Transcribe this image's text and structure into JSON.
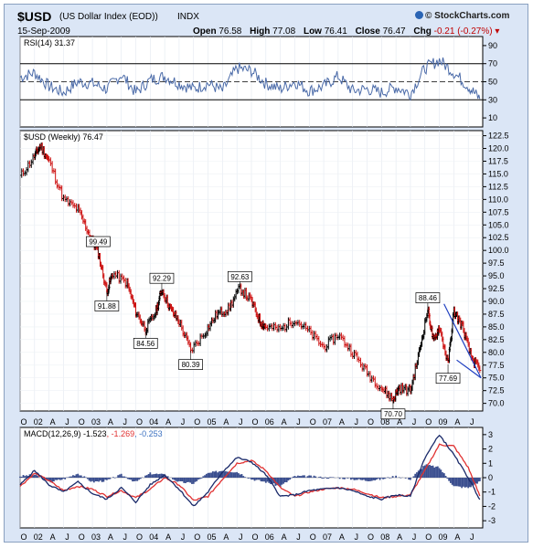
{
  "header": {
    "symbol": "$USD",
    "description": "(US Dollar Index (EOD))",
    "exchange": "INDX",
    "date": "15-Sep-2009",
    "brand": "© StockCharts.com",
    "quote": {
      "open_label": "Open",
      "open": "76.58",
      "high_label": "High",
      "high": "77.08",
      "low_label": "Low",
      "low": "76.41",
      "close_label": "Close",
      "close": "76.47",
      "chg_label": "Chg",
      "chg": "-0.21 (-0.27%)"
    }
  },
  "rsi_panel": {
    "label": "RSI(14) 31.37",
    "ticks": [
      "90",
      "70",
      "50",
      "30",
      "10"
    ]
  },
  "price_panel": {
    "label": "$USD (Weekly) 76.47",
    "ticks": [
      "122.5",
      "120.0",
      "117.5",
      "115.0",
      "112.5",
      "110.0",
      "107.5",
      "105.0",
      "102.5",
      "100.0",
      "97.5",
      "95.0",
      "92.5",
      "90.0",
      "87.5",
      "85.0",
      "82.5",
      "80.0",
      "77.5",
      "75.0",
      "72.5",
      "70.0"
    ]
  },
  "macd_panel": {
    "label_parts": [
      "MACD(12,26,9)",
      "-1.523",
      ", -1.269",
      ", -0.253"
    ],
    "ticks": [
      "3",
      "2",
      "1",
      "0",
      "-1",
      "-2",
      "-3"
    ]
  },
  "time_axis": [
    "O",
    "02",
    "A",
    "J",
    "O",
    "03",
    "A",
    "J",
    "O",
    "04",
    "A",
    "J",
    "O",
    "05",
    "A",
    "J",
    "O",
    "06",
    "A",
    "J",
    "O",
    "07",
    "A",
    "J",
    "O",
    "08",
    "A",
    "J",
    "O",
    "09",
    "A",
    "J"
  ],
  "colors": {
    "panel_bg": "#dbe6f6",
    "plot_bg": "#ffffff",
    "up": "#000000",
    "down": "#cc1010",
    "rsi": "#4a6aa8",
    "macd": "#1a2a6a",
    "signal": "#e03030",
    "histogram": "#3b4f8f",
    "trendline": "#2040c0"
  },
  "chart_data": [
    {
      "type": "line",
      "title": "RSI(14) 31.37",
      "ylim": [
        0,
        100
      ],
      "reference_lines": [
        30,
        50,
        70
      ],
      "x": [
        2001.75,
        2002.0,
        2002.25,
        2002.5,
        2002.75,
        2003.0,
        2003.25,
        2003.5,
        2003.75,
        2004.0,
        2004.25,
        2004.5,
        2004.75,
        2005.0,
        2005.25,
        2005.5,
        2005.75,
        2006.0,
        2006.25,
        2006.5,
        2006.75,
        2007.0,
        2007.25,
        2007.5,
        2007.75,
        2008.0,
        2008.25,
        2008.5,
        2008.75,
        2009.0,
        2009.25,
        2009.5,
        2009.7
      ],
      "values": [
        55,
        60,
        45,
        38,
        50,
        48,
        42,
        58,
        38,
        52,
        56,
        48,
        42,
        48,
        40,
        65,
        62,
        48,
        42,
        50,
        40,
        45,
        56,
        40,
        42,
        38,
        44,
        37,
        65,
        74,
        60,
        45,
        31
      ]
    },
    {
      "type": "line",
      "title": "$USD (Weekly) 76.47",
      "ylim": [
        68.5,
        123.5
      ],
      "x": [
        2001.75,
        2002.0,
        2002.1,
        2002.25,
        2002.5,
        2002.75,
        2002.95,
        2003.1,
        2003.25,
        2003.35,
        2003.6,
        2003.75,
        2003.92,
        2004.1,
        2004.2,
        2004.35,
        2004.5,
        2004.7,
        2004.95,
        2005.15,
        2005.35,
        2005.55,
        2005.75,
        2005.9,
        2006.0,
        2006.25,
        2006.5,
        2006.75,
        2007.0,
        2007.25,
        2007.5,
        2007.75,
        2008.0,
        2008.2,
        2008.3,
        2008.5,
        2008.65,
        2008.8,
        2008.9,
        2009.0,
        2009.15,
        2009.25,
        2009.4,
        2009.55,
        2009.7
      ],
      "values": [
        114.5,
        118.5,
        120.5,
        117.5,
        110.0,
        108.0,
        103.0,
        99.49,
        91.88,
        95.5,
        93.5,
        88.0,
        84.56,
        88.0,
        92.29,
        88.5,
        86.0,
        80.39,
        84.0,
        87.5,
        88.5,
        92.63,
        90.0,
        86.0,
        85.0,
        84.5,
        86.5,
        84.0,
        81.0,
        83.5,
        80.0,
        76.0,
        73.0,
        70.7,
        73.0,
        72.5,
        80.0,
        88.46,
        82.0,
        85.0,
        77.69,
        88.0,
        85.0,
        79.0,
        76.47
      ]
    },
    {
      "type": "line",
      "title": "MACD(12,26,9) -1.523, -1.269, -0.253",
      "ylim": [
        -3.5,
        3.5
      ],
      "x": [
        2001.75,
        2002.0,
        2002.25,
        2002.5,
        2002.75,
        2003.0,
        2003.25,
        2003.5,
        2003.75,
        2004.0,
        2004.25,
        2004.5,
        2004.75,
        2005.0,
        2005.25,
        2005.5,
        2005.75,
        2006.0,
        2006.25,
        2006.5,
        2006.75,
        2007.0,
        2007.25,
        2007.5,
        2007.75,
        2008.0,
        2008.25,
        2008.5,
        2008.75,
        2009.0,
        2009.25,
        2009.5,
        2009.7
      ],
      "series": [
        {
          "name": "MACD",
          "values": [
            -0.5,
            0.5,
            -0.5,
            -1.0,
            -0.3,
            -1.1,
            -1.5,
            -0.7,
            -1.7,
            -0.5,
            0.2,
            -0.8,
            -2.0,
            -1.0,
            0.4,
            1.4,
            1.1,
            0.2,
            -1.3,
            -1.2,
            -0.9,
            -0.8,
            -0.7,
            -0.9,
            -1.3,
            -1.5,
            -1.2,
            -1.3,
            1.4,
            3.0,
            1.6,
            0.0,
            -1.52
          ]
        },
        {
          "name": "Signal",
          "values": [
            -0.6,
            0.3,
            -0.2,
            -0.9,
            -0.6,
            -0.8,
            -1.3,
            -0.9,
            -1.4,
            -0.8,
            0.0,
            -0.5,
            -1.6,
            -1.3,
            -0.1,
            1.0,
            1.2,
            0.5,
            -0.7,
            -1.3,
            -1.0,
            -0.8,
            -0.7,
            -0.8,
            -1.1,
            -1.4,
            -1.3,
            -1.2,
            0.5,
            2.3,
            2.2,
            0.7,
            -1.27
          ]
        },
        {
          "name": "Histogram",
          "values": [
            0.1,
            0.2,
            -0.3,
            -0.1,
            0.3,
            -0.3,
            -0.2,
            0.2,
            -0.3,
            0.3,
            0.2,
            -0.3,
            -0.4,
            0.3,
            0.5,
            0.4,
            -0.1,
            -0.3,
            -0.6,
            0.1,
            0.1,
            0.0,
            0.0,
            -0.1,
            -0.2,
            -0.1,
            0.1,
            -0.1,
            0.9,
            0.7,
            -0.6,
            -0.7,
            -0.25
          ]
        }
      ]
    }
  ],
  "annotations": [
    "99.49",
    "91.88",
    "84.56",
    "92.29",
    "80.39",
    "92.63",
    "70.70",
    "88.46",
    "77.69"
  ]
}
